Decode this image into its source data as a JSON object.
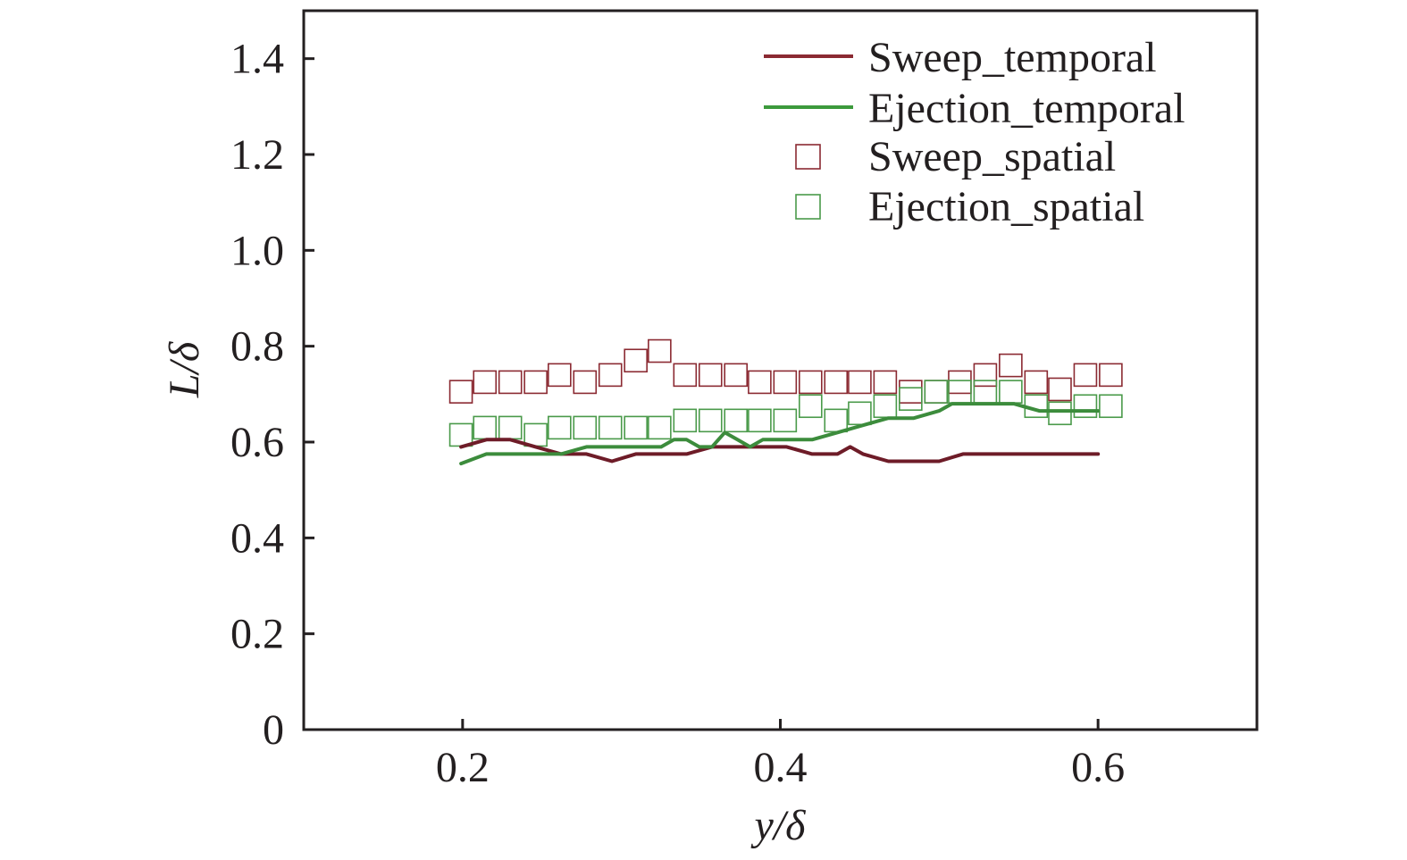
{
  "chart_data": {
    "type": "line",
    "title": "",
    "xlabel": "y/δ",
    "ylabel": "L/δ",
    "xlim": [
      0.1,
      0.7
    ],
    "ylim": [
      0,
      1.5
    ],
    "xticks": [
      0.2,
      0.4,
      0.6
    ],
    "xtick_labels": [
      "0.2",
      "0.4",
      "0.6"
    ],
    "yticks": [
      0,
      0.2,
      0.4,
      0.6,
      0.8,
      1.0,
      1.2,
      1.4
    ],
    "ytick_labels": [
      "0",
      "0.2",
      "0.4",
      "0.6",
      "0.8",
      "1.0",
      "1.2",
      "1.4"
    ],
    "grid": false,
    "legend_position": "top-right",
    "series": [
      {
        "name": "Sweep_temporal",
        "kind": "line",
        "color": "#6e1c28",
        "x": [
          0.199,
          0.215,
          0.23,
          0.246,
          0.262,
          0.278,
          0.294,
          0.309,
          0.325,
          0.341,
          0.357,
          0.373,
          0.389,
          0.404,
          0.42,
          0.436,
          0.444,
          0.452,
          0.468,
          0.484,
          0.5,
          0.515,
          0.531,
          0.547,
          0.563,
          0.579,
          0.6
        ],
        "y": [
          0.59,
          0.605,
          0.605,
          0.59,
          0.575,
          0.575,
          0.56,
          0.575,
          0.575,
          0.575,
          0.59,
          0.59,
          0.59,
          0.59,
          0.575,
          0.575,
          0.59,
          0.575,
          0.56,
          0.56,
          0.56,
          0.575,
          0.575,
          0.575,
          0.575,
          0.575,
          0.575
        ]
      },
      {
        "name": "Ejection_temporal",
        "kind": "line",
        "color": "#3c8c3c",
        "x": [
          0.199,
          0.215,
          0.23,
          0.246,
          0.262,
          0.278,
          0.294,
          0.309,
          0.325,
          0.333,
          0.341,
          0.349,
          0.357,
          0.365,
          0.373,
          0.381,
          0.389,
          0.404,
          0.42,
          0.436,
          0.452,
          0.468,
          0.484,
          0.5,
          0.508,
          0.515,
          0.531,
          0.547,
          0.563,
          0.579,
          0.6
        ],
        "y": [
          0.555,
          0.575,
          0.575,
          0.575,
          0.575,
          0.59,
          0.59,
          0.59,
          0.59,
          0.605,
          0.605,
          0.59,
          0.59,
          0.62,
          0.605,
          0.59,
          0.605,
          0.605,
          0.605,
          0.62,
          0.635,
          0.65,
          0.65,
          0.665,
          0.68,
          0.68,
          0.68,
          0.68,
          0.665,
          0.665,
          0.665
        ]
      },
      {
        "name": "Sweep_spatial",
        "kind": "scatter",
        "marker": "open-square",
        "color": "#8b2a32",
        "x": [
          0.199,
          0.214,
          0.23,
          0.246,
          0.261,
          0.277,
          0.293,
          0.309,
          0.324,
          0.34,
          0.356,
          0.372,
          0.387,
          0.403,
          0.419,
          0.435,
          0.45,
          0.466,
          0.482,
          0.498,
          0.513,
          0.529,
          0.545,
          0.561,
          0.576,
          0.592,
          0.608
        ],
        "y": [
          0.705,
          0.725,
          0.725,
          0.725,
          0.74,
          0.725,
          0.74,
          0.77,
          0.79,
          0.74,
          0.74,
          0.74,
          0.725,
          0.725,
          0.725,
          0.725,
          0.725,
          0.725,
          0.705,
          0.705,
          0.725,
          0.74,
          0.76,
          0.725,
          0.71,
          0.74,
          0.74
        ]
      },
      {
        "name": "Ejection_spatial",
        "kind": "scatter",
        "marker": "open-square",
        "color": "#4a9a4a",
        "x": [
          0.199,
          0.214,
          0.23,
          0.246,
          0.261,
          0.277,
          0.293,
          0.309,
          0.324,
          0.34,
          0.356,
          0.372,
          0.387,
          0.403,
          0.419,
          0.435,
          0.45,
          0.466,
          0.482,
          0.498,
          0.513,
          0.529,
          0.545,
          0.561,
          0.576,
          0.592,
          0.608
        ],
        "y": [
          0.615,
          0.63,
          0.63,
          0.615,
          0.63,
          0.63,
          0.63,
          0.63,
          0.63,
          0.645,
          0.645,
          0.645,
          0.645,
          0.645,
          0.675,
          0.645,
          0.66,
          0.675,
          0.69,
          0.705,
          0.705,
          0.705,
          0.705,
          0.675,
          0.66,
          0.675,
          0.675
        ]
      }
    ]
  }
}
